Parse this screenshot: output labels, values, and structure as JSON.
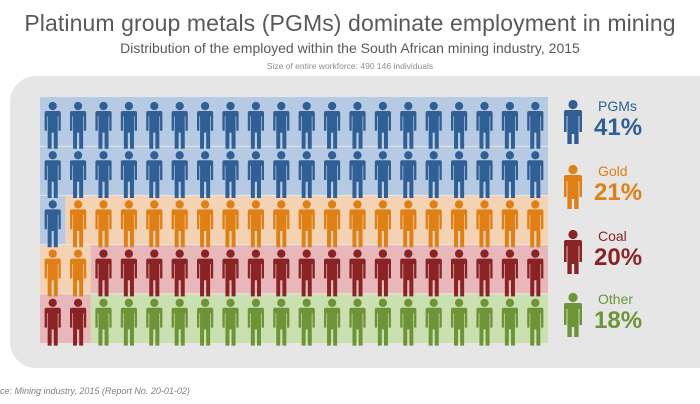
{
  "header": {
    "title": "Platinum group metals (PGMs) dominate employment in mining",
    "subtitle": "Distribution of the employed within the South African mining industry, 2015",
    "note": "Size of entire workforce: 490 146 individuals"
  },
  "source": "ce: Mining industry, 2015 (Report No. 20-01-02)",
  "chart_data": {
    "type": "waffle",
    "unit": "individuals",
    "total_workforce": 490146,
    "icons_per_row": 20,
    "rows": 5,
    "categories": [
      {
        "name": "PGMs",
        "percent": 41,
        "pct_label": "41%",
        "icons": 41,
        "color": "#2f5f94",
        "band": "#b6cbe3"
      },
      {
        "name": "Gold",
        "percent": 21,
        "pct_label": "21%",
        "icons": 21,
        "color": "#e07f13",
        "band": "#f4d2b4"
      },
      {
        "name": "Coal",
        "percent": 20,
        "pct_label": "20%",
        "icons": 20,
        "color": "#8a2323",
        "band": "#e8b7b9"
      },
      {
        "name": "Other",
        "percent": 18,
        "pct_label": "18%",
        "icons": 18,
        "color": "#6d9437",
        "band": "#cbe0b0"
      }
    ]
  }
}
